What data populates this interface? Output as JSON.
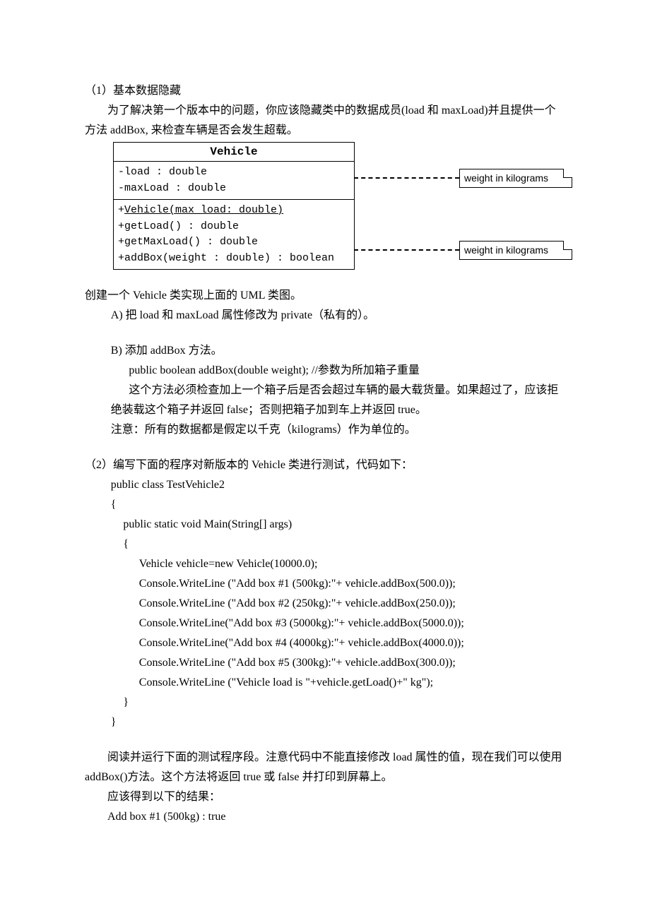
{
  "p1": "（1）基本数据隐藏",
  "p2": "为了解决第一个版本中的问题，你应该隐藏类中的数据成员(load 和 maxLoad)并且提供一个方法 addBox, 来检查车辆是否会发生超载。",
  "uml": {
    "title": "Vehicle",
    "attr1": "-load : double",
    "attr2": "-maxLoad : double",
    "op1": "+Vehicle(max_load:  double)",
    "op2": "+getLoad() : double",
    "op3": "+getMaxLoad() : double",
    "op4": "+addBox(weight : double) : boolean",
    "note": "weight in kilograms"
  },
  "p3": "创建一个 Vehicle 类实现上面的 UML 类图。",
  "pA": "A) 把 load 和 maxLoad 属性修改为 private（私有的）。",
  "pB1": "B) 添加 addBox 方法。",
  "pB2": "public boolean addBox(double weight);   //参数为所加箱子重量",
  "pB3": "这个方法必须检查加上一个箱子后是否会超过车辆的最大载货量。如果超过了，应该拒绝装载这个箱子并返回 false；否则把箱子加到车上并返回 true。",
  "pB4": "注意：所有的数据都是假定以千克（kilograms）作为单位的。",
  "p4": "（2）编写下面的程序对新版本的 Vehicle 类进行测试，代码如下：",
  "code": {
    "l1": "public class TestVehicle2",
    "l2": "{",
    "l3": "public static void Main(String[] args)",
    "l4": "{",
    "l5": "Vehicle vehicle=new Vehicle(10000.0);",
    "l6": "Console.WriteLine (\"Add box #1 (500kg):\"+ vehicle.addBox(500.0));",
    "l7": "Console.WriteLine (\"Add box #2 (250kg):\"+ vehicle.addBox(250.0));",
    "l8": "Console.WriteLine(\"Add box #3 (5000kg):\"+ vehicle.addBox(5000.0));",
    "l9": "Console.WriteLine(\"Add box #4 (4000kg):\"+ vehicle.addBox(4000.0));",
    "l10": "Console.WriteLine (\"Add box #5 (300kg):\"+ vehicle.addBox(300.0));",
    "l11": "Console.WriteLine (\"Vehicle load is \"+vehicle.getLoad()+\" kg\");",
    "l12": "}",
    "l13": "}"
  },
  "p5": "阅读并运行下面的测试程序段。注意代码中不能直接修改 load 属性的值，现在我们可以使用 addBox()方法。这个方法将返回 true 或 false 并打印到屏幕上。",
  "p6": "应该得到以下的结果：",
  "p7": "Add box #1 (500kg) : true"
}
